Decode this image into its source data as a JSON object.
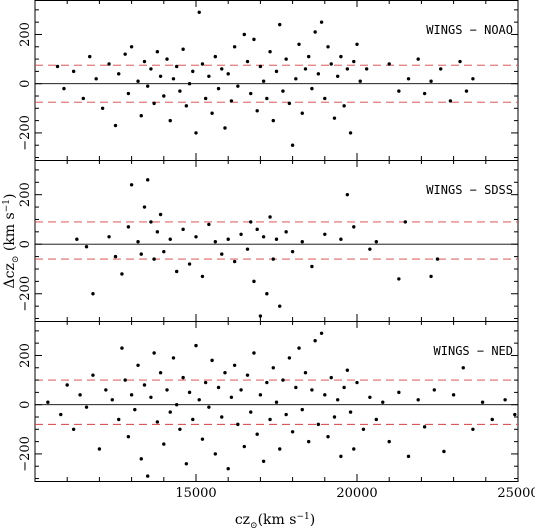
{
  "chart_data": {
    "type": "scatter",
    "title": "",
    "xlabel": {
      "main": "cz",
      "sub": "⊙",
      "unit_open": "(km s",
      "sup": "−1",
      "unit_close": ")"
    },
    "ylabel": {
      "main": "Δcz",
      "sub": "⊙",
      "unit_open": " (km s",
      "sup": "−1",
      "unit_close": ")"
    },
    "xlim": [
      10000,
      25000
    ],
    "x_ticks": [
      15000,
      20000,
      25000
    ],
    "y_ticks": [
      -200,
      0,
      200
    ],
    "colors": {
      "points": "#000000",
      "zero_line": "#000000",
      "band_lines": "#d04040"
    },
    "panels": [
      {
        "label": "WINGS − NOAO",
        "ylim": [
          -310,
          340
        ],
        "band": [
          -75,
          75
        ],
        "points": [
          [
            10700,
            70
          ],
          [
            10900,
            -20
          ],
          [
            11200,
            50
          ],
          [
            11500,
            -60
          ],
          [
            11700,
            110
          ],
          [
            11900,
            20
          ],
          [
            12100,
            -100
          ],
          [
            12300,
            80
          ],
          [
            12500,
            -170
          ],
          [
            12600,
            40
          ],
          [
            12800,
            120
          ],
          [
            12900,
            -40
          ],
          [
            13000,
            150
          ],
          [
            13200,
            10
          ],
          [
            13300,
            -130
          ],
          [
            13400,
            90
          ],
          [
            13500,
            -10
          ],
          [
            13600,
            60
          ],
          [
            13700,
            -80
          ],
          [
            13800,
            130
          ],
          [
            13900,
            30
          ],
          [
            14000,
            -50
          ],
          [
            14100,
            100
          ],
          [
            14200,
            -150
          ],
          [
            14300,
            20
          ],
          [
            14400,
            70
          ],
          [
            14500,
            -30
          ],
          [
            14600,
            140
          ],
          [
            14700,
            -90
          ],
          [
            14800,
            0
          ],
          [
            14900,
            50
          ],
          [
            15000,
            -200
          ],
          [
            15100,
            290
          ],
          [
            15200,
            80
          ],
          [
            15300,
            -60
          ],
          [
            15400,
            30
          ],
          [
            15500,
            -120
          ],
          [
            15600,
            110
          ],
          [
            15700,
            -20
          ],
          [
            15800,
            60
          ],
          [
            15900,
            -180
          ],
          [
            16000,
            40
          ],
          [
            16100,
            -70
          ],
          [
            16200,
            150
          ],
          [
            16300,
            -10
          ],
          [
            16500,
            200
          ],
          [
            16600,
            90
          ],
          [
            16700,
            -40
          ],
          [
            16800,
            180
          ],
          [
            16900,
            -110
          ],
          [
            17000,
            70
          ],
          [
            17100,
            10
          ],
          [
            17200,
            -60
          ],
          [
            17300,
            130
          ],
          [
            17400,
            -150
          ],
          [
            17500,
            50
          ],
          [
            17600,
            240
          ],
          [
            17700,
            -30
          ],
          [
            17800,
            100
          ],
          [
            17900,
            -80
          ],
          [
            18000,
            -250
          ],
          [
            18100,
            20
          ],
          [
            18200,
            160
          ],
          [
            18300,
            -120
          ],
          [
            18400,
            60
          ],
          [
            18500,
            110
          ],
          [
            18600,
            -20
          ],
          [
            18700,
            210
          ],
          [
            18800,
            40
          ],
          [
            18900,
            250
          ],
          [
            19000,
            -60
          ],
          [
            19100,
            150
          ],
          [
            19200,
            80
          ],
          [
            19300,
            -140
          ],
          [
            19400,
            30
          ],
          [
            19500,
            110
          ],
          [
            19600,
            -90
          ],
          [
            19700,
            60
          ],
          [
            19800,
            -200
          ],
          [
            19900,
            90
          ],
          [
            20000,
            160
          ],
          [
            20100,
            10
          ],
          [
            20300,
            60
          ],
          [
            21000,
            80
          ],
          [
            21300,
            -30
          ],
          [
            21600,
            20
          ],
          [
            21900,
            100
          ],
          [
            22100,
            -40
          ],
          [
            22300,
            10
          ],
          [
            22600,
            60
          ],
          [
            22900,
            -70
          ],
          [
            23200,
            90
          ],
          [
            23400,
            -30
          ],
          [
            23600,
            20
          ]
        ]
      },
      {
        "label": "WINGS − SDSS",
        "ylim": [
          -310,
          340
        ],
        "band": [
          -60,
          90
        ],
        "points": [
          [
            11300,
            20
          ],
          [
            11600,
            -10
          ],
          [
            11800,
            -200
          ],
          [
            12300,
            30
          ],
          [
            12500,
            -50
          ],
          [
            12700,
            -120
          ],
          [
            12900,
            70
          ],
          [
            13000,
            240
          ],
          [
            13200,
            10
          ],
          [
            13300,
            -40
          ],
          [
            13400,
            150
          ],
          [
            13500,
            260
          ],
          [
            13600,
            90
          ],
          [
            13700,
            -60
          ],
          [
            13800,
            50
          ],
          [
            13900,
            120
          ],
          [
            14000,
            -30
          ],
          [
            14200,
            20
          ],
          [
            14400,
            -110
          ],
          [
            14600,
            60
          ],
          [
            14800,
            -80
          ],
          [
            15000,
            30
          ],
          [
            15200,
            -130
          ],
          [
            15400,
            80
          ],
          [
            15600,
            10
          ],
          [
            15800,
            -40
          ],
          [
            16000,
            20
          ],
          [
            16200,
            -70
          ],
          [
            16400,
            40
          ],
          [
            16600,
            -20
          ],
          [
            16700,
            90
          ],
          [
            16800,
            -150
          ],
          [
            16900,
            60
          ],
          [
            17000,
            -290
          ],
          [
            17100,
            30
          ],
          [
            17200,
            -200
          ],
          [
            17300,
            110
          ],
          [
            17400,
            -60
          ],
          [
            17500,
            20
          ],
          [
            17600,
            -250
          ],
          [
            17800,
            50
          ],
          [
            18000,
            -30
          ],
          [
            18300,
            10
          ],
          [
            18600,
            -90
          ],
          [
            19000,
            40
          ],
          [
            19500,
            20
          ],
          [
            19700,
            200
          ],
          [
            19900,
            70
          ],
          [
            20400,
            -20
          ],
          [
            20600,
            10
          ],
          [
            21300,
            -140
          ],
          [
            21500,
            90
          ],
          [
            22300,
            -130
          ],
          [
            22500,
            -60
          ]
        ]
      },
      {
        "label": "WINGS − NED",
        "ylim": [
          -310,
          340
        ],
        "band": [
          -80,
          100
        ],
        "points": [
          [
            10400,
            10
          ],
          [
            10800,
            -40
          ],
          [
            11000,
            80
          ],
          [
            11200,
            -100
          ],
          [
            11400,
            40
          ],
          [
            11600,
            -10
          ],
          [
            11800,
            120
          ],
          [
            12000,
            -180
          ],
          [
            12200,
            60
          ],
          [
            12400,
            20
          ],
          [
            12600,
            -60
          ],
          [
            12700,
            230
          ],
          [
            12800,
            100
          ],
          [
            12900,
            -130
          ],
          [
            13000,
            40
          ],
          [
            13100,
            -20
          ],
          [
            13200,
            160
          ],
          [
            13300,
            -220
          ],
          [
            13400,
            80
          ],
          [
            13500,
            -290
          ],
          [
            13600,
            30
          ],
          [
            13700,
            210
          ],
          [
            13800,
            -70
          ],
          [
            13900,
            130
          ],
          [
            14000,
            -160
          ],
          [
            14100,
            60
          ],
          [
            14200,
            -30
          ],
          [
            14300,
            190
          ],
          [
            14400,
            0
          ],
          [
            14500,
            -100
          ],
          [
            14600,
            110
          ],
          [
            14700,
            -240
          ],
          [
            14800,
            50
          ],
          [
            14900,
            -60
          ],
          [
            15000,
            240
          ],
          [
            15100,
            20
          ],
          [
            15200,
            -140
          ],
          [
            15300,
            90
          ],
          [
            15400,
            -10
          ],
          [
            15500,
            180
          ],
          [
            15600,
            -200
          ],
          [
            15700,
            70
          ],
          [
            15800,
            -50
          ],
          [
            15900,
            130
          ],
          [
            16000,
            -260
          ],
          [
            16100,
            30
          ],
          [
            16200,
            160
          ],
          [
            16300,
            -80
          ],
          [
            16400,
            60
          ],
          [
            16500,
            -170
          ],
          [
            16600,
            120
          ],
          [
            16700,
            -30
          ],
          [
            16800,
            210
          ],
          [
            16900,
            -120
          ],
          [
            17000,
            40
          ],
          [
            17100,
            -230
          ],
          [
            17200,
            90
          ],
          [
            17300,
            -60
          ],
          [
            17400,
            150
          ],
          [
            17500,
            10
          ],
          [
            17600,
            -180
          ],
          [
            17700,
            100
          ],
          [
            17800,
            -40
          ],
          [
            17900,
            190
          ],
          [
            18000,
            -110
          ],
          [
            18100,
            70
          ],
          [
            18200,
            230
          ],
          [
            18300,
            -20
          ],
          [
            18400,
            130
          ],
          [
            18500,
            -150
          ],
          [
            18600,
            60
          ],
          [
            18700,
            260
          ],
          [
            18800,
            -80
          ],
          [
            18900,
            290
          ],
          [
            19000,
            40
          ],
          [
            19100,
            -130
          ],
          [
            19200,
            110
          ],
          [
            19300,
            -50
          ],
          [
            19400,
            20
          ],
          [
            19500,
            -210
          ],
          [
            19600,
            70
          ],
          [
            19700,
            140
          ],
          [
            19800,
            -30
          ],
          [
            19900,
            -180
          ],
          [
            20000,
            90
          ],
          [
            20200,
            -100
          ],
          [
            20400,
            30
          ],
          [
            20600,
            -60
          ],
          [
            20800,
            10
          ],
          [
            21000,
            -150
          ],
          [
            21300,
            50
          ],
          [
            21600,
            -210
          ],
          [
            21900,
            20
          ],
          [
            22100,
            -90
          ],
          [
            22400,
            60
          ],
          [
            22700,
            -190
          ],
          [
            23000,
            40
          ],
          [
            23300,
            150
          ],
          [
            23600,
            -100
          ],
          [
            23900,
            10
          ],
          [
            24200,
            -60
          ],
          [
            24600,
            20
          ],
          [
            24900,
            -40
          ]
        ]
      }
    ]
  }
}
